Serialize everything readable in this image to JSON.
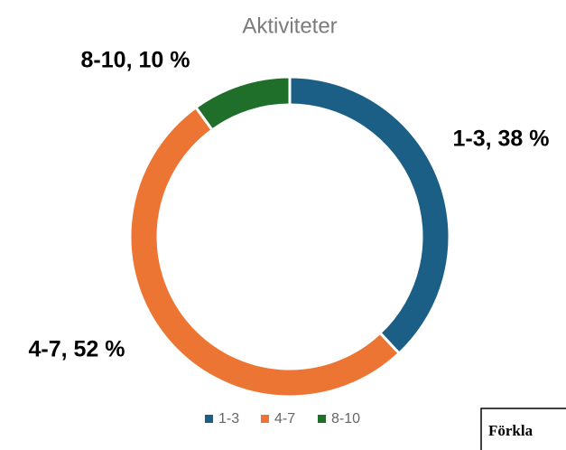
{
  "chart_data": {
    "type": "pie",
    "title": "Aktiviteter",
    "categories": [
      "1-3",
      "4-7",
      "8-10"
    ],
    "values": [
      38,
      52,
      10
    ],
    "value_labels": [
      "1-3, 38 %",
      "4-7, 52 %",
      "8-10, 10 %"
    ],
    "colors": [
      "#1b5f86",
      "#ed7534",
      "#1f6f2b"
    ],
    "donut": true,
    "legend": "bottom"
  },
  "textbox": "Förkla"
}
